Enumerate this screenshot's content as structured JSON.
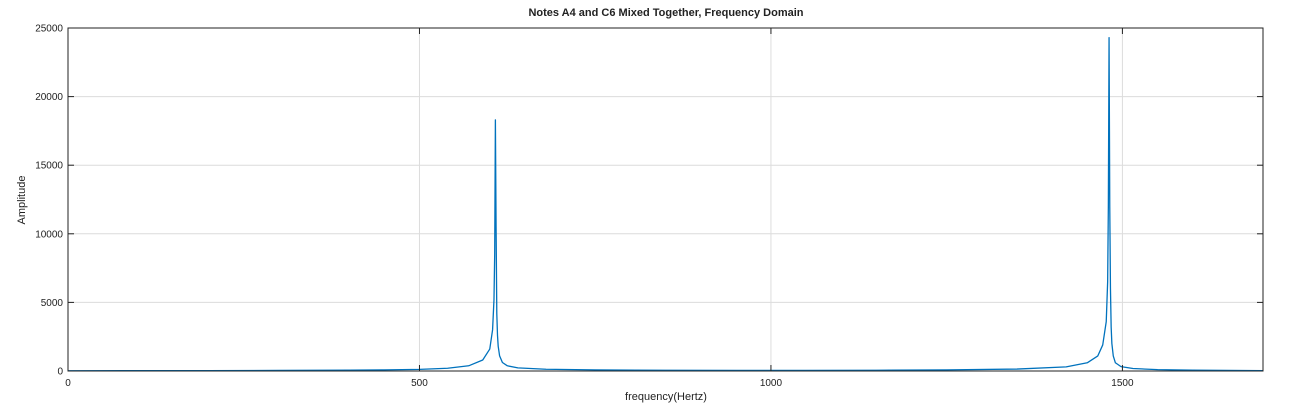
{
  "chart_data": {
    "type": "line",
    "title": "Notes A4 and C6 Mixed Together, Frequency Domain",
    "xlabel": "frequency(Hertz)",
    "ylabel": "Amplitude",
    "xlim": [
      0,
      1700
    ],
    "ylim": [
      0,
      25000
    ],
    "xticks": [
      0,
      500,
      1000,
      1500
    ],
    "yticks": [
      0,
      5000,
      10000,
      15000,
      20000,
      25000
    ],
    "grid": true,
    "line_color": "#0072bd",
    "series": [
      {
        "x": [
          0,
          100,
          200,
          300,
          400,
          450,
          500,
          540,
          570,
          590,
          600,
          604,
          606,
          607,
          608,
          609,
          610,
          611,
          612,
          614,
          618,
          625,
          640,
          680,
          750,
          850,
          950,
          1050,
          1150,
          1250,
          1350,
          1420,
          1450,
          1465,
          1472,
          1477,
          1479,
          1480,
          1481,
          1482,
          1483,
          1484,
          1485,
          1487,
          1490,
          1498,
          1515,
          1550,
          1600,
          1650,
          1700
        ],
        "y": [
          20,
          25,
          30,
          40,
          60,
          80,
          120,
          200,
          380,
          800,
          1600,
          3000,
          5200,
          8500,
          18300,
          10500,
          4200,
          2600,
          1800,
          1100,
          620,
          380,
          230,
          130,
          80,
          55,
          45,
          45,
          55,
          80,
          140,
          300,
          600,
          1100,
          1900,
          3600,
          6500,
          12000,
          24300,
          12000,
          6000,
          3200,
          2000,
          1100,
          600,
          320,
          180,
          100,
          60,
          40,
          30
        ]
      }
    ]
  }
}
